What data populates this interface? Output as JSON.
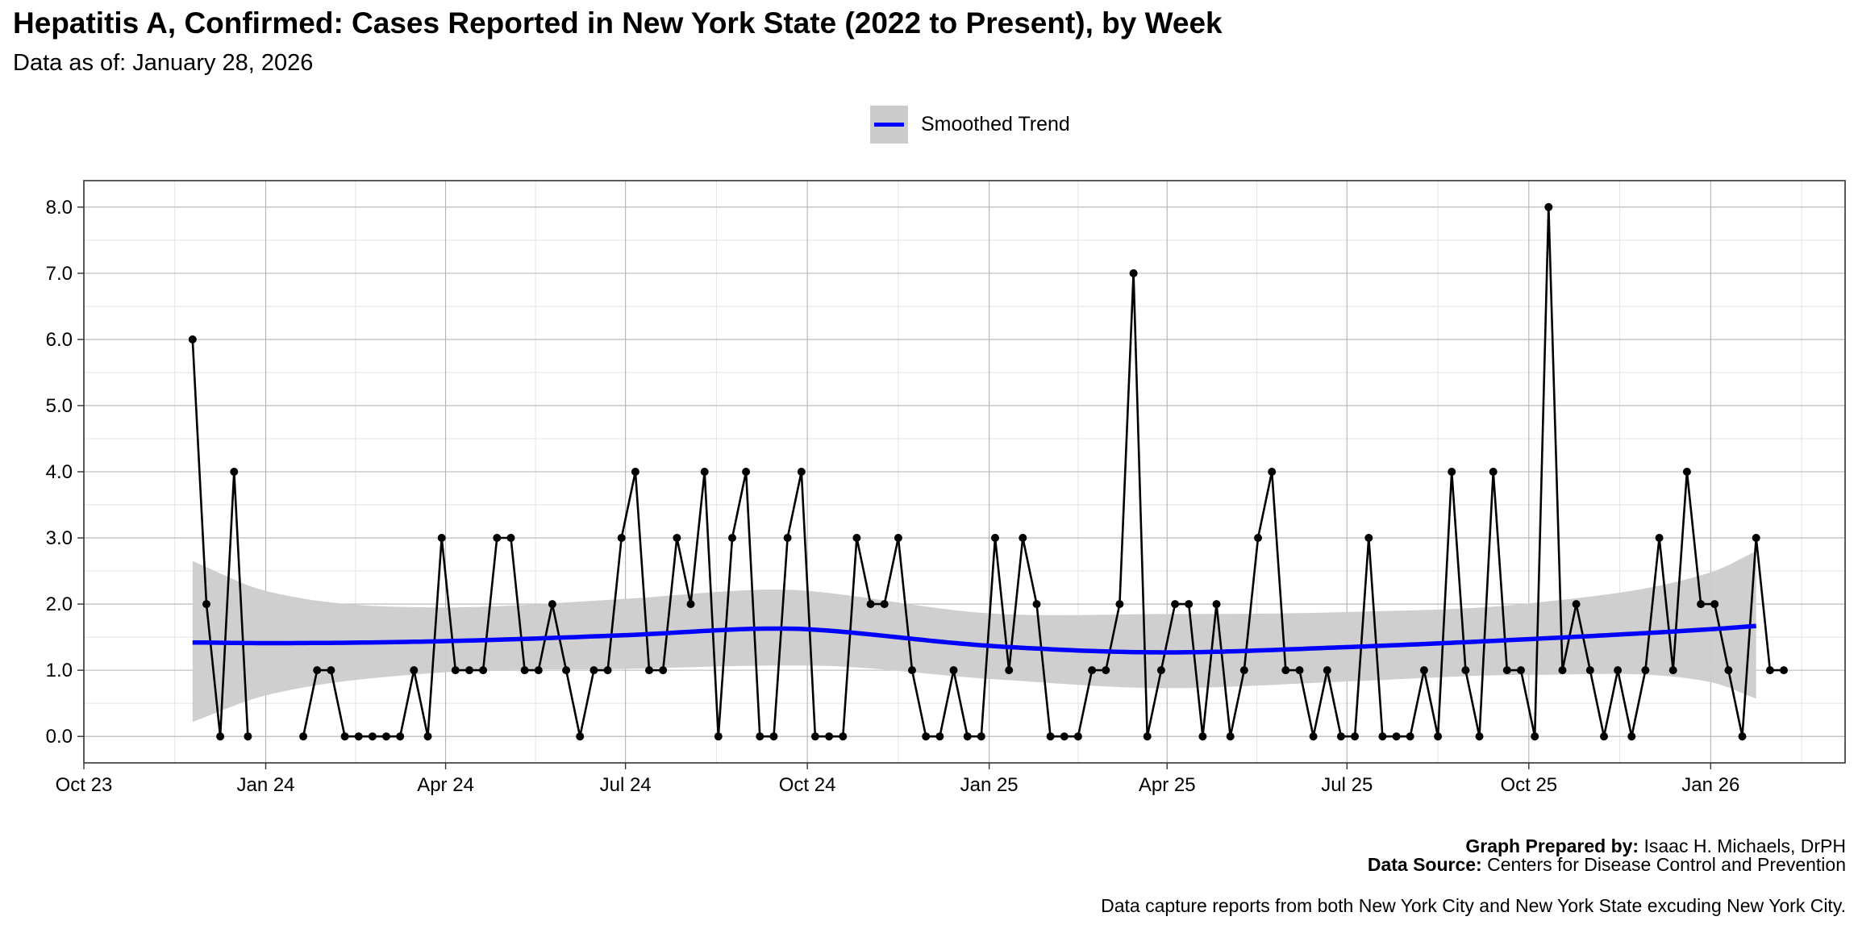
{
  "header": {
    "title": "Hepatitis A, Confirmed: Cases Reported in New York State (2022 to Present), by Week",
    "subtitle": "Data as of: January 28, 2026"
  },
  "legend": {
    "label": "Smoothed Trend"
  },
  "colors": {
    "trend": "#0000ff",
    "band": "#cccccc",
    "series": "#000000"
  },
  "footer": {
    "prepared_label": "Graph Prepared by:",
    "prepared_value": "Isaac H. Michaels, DrPH",
    "source_label": "Data Source:",
    "source_value": "Centers for Disease Control and Prevention",
    "note": "Data capture reports from both New York City and New York State excuding New York City."
  },
  "chart_data": {
    "type": "line",
    "title": "Hepatitis A, Confirmed: Cases Reported in New York State (2022 to Present), by Week",
    "xlabel": "",
    "ylabel": "",
    "x_start": "2023-11-25",
    "x_step_days": 7,
    "xlim": [
      "2023-10-01",
      "2026-03-10"
    ],
    "ylim": [
      -0.4,
      8.4
    ],
    "yticks": [
      0,
      1,
      2,
      3,
      4,
      5,
      6,
      7,
      8
    ],
    "ytick_labels": [
      "0.0",
      "1.0",
      "2.0",
      "3.0",
      "4.0",
      "5.0",
      "6.0",
      "7.0",
      "8.0"
    ],
    "xticks": [
      {
        "label": "Oct 23",
        "date": "2023-10-01"
      },
      {
        "label": "Jan 24",
        "date": "2024-01-01"
      },
      {
        "label": "Apr 24",
        "date": "2024-04-01"
      },
      {
        "label": "Jul 24",
        "date": "2024-07-01"
      },
      {
        "label": "Oct 24",
        "date": "2024-10-01"
      },
      {
        "label": "Jan 25",
        "date": "2025-01-01"
      },
      {
        "label": "Apr 25",
        "date": "2025-04-01"
      },
      {
        "label": "Jul 25",
        "date": "2025-07-01"
      },
      {
        "label": "Oct 25",
        "date": "2025-10-01"
      },
      {
        "label": "Jan 26",
        "date": "2026-01-01"
      }
    ],
    "series": [
      {
        "name": "Weekly cases",
        "segments": [
          [
            6,
            2,
            0,
            4,
            0
          ],
          [
            0,
            1,
            1,
            0,
            0,
            0,
            0,
            0,
            1,
            0,
            3,
            1,
            1,
            1,
            3,
            3,
            1,
            1,
            2,
            1,
            0,
            1,
            1,
            3,
            4,
            1,
            1,
            3,
            2,
            4,
            0,
            3,
            4,
            0,
            0,
            3,
            4,
            0,
            0,
            0,
            3,
            2,
            2,
            3,
            1,
            0,
            0,
            1,
            0,
            0,
            3,
            1,
            3,
            2,
            0,
            0,
            0,
            1,
            1,
            2,
            7,
            0,
            1,
            2,
            2,
            0,
            2,
            0,
            1,
            3,
            4,
            1,
            1,
            0,
            1,
            0,
            0,
            3,
            0,
            0,
            0,
            1,
            0,
            4,
            1,
            0,
            4,
            1,
            1,
            0,
            8,
            1,
            2,
            1,
            0,
            1,
            0,
            1,
            3,
            1,
            4,
            2,
            2,
            1,
            0,
            3,
            1,
            1
          ]
        ],
        "segment_start_offsets": [
          0,
          8
        ]
      },
      {
        "name": "Smoothed Trend",
        "knots": [
          {
            "date": "2023-11-25",
            "fit": 1.42,
            "lower": 0.22,
            "upper": 2.65
          },
          {
            "date": "2024-01-01",
            "fit": 1.41,
            "lower": 0.62,
            "upper": 2.2
          },
          {
            "date": "2024-04-01",
            "fit": 1.44,
            "lower": 0.97,
            "upper": 1.95
          },
          {
            "date": "2024-07-01",
            "fit": 1.53,
            "lower": 1.02,
            "upper": 2.08
          },
          {
            "date": "2024-09-15",
            "fit": 1.63,
            "lower": 1.07,
            "upper": 2.22
          },
          {
            "date": "2024-10-01",
            "fit": 1.62,
            "lower": 1.07,
            "upper": 2.2
          },
          {
            "date": "2025-01-01",
            "fit": 1.37,
            "lower": 0.87,
            "upper": 1.86
          },
          {
            "date": "2025-04-01",
            "fit": 1.27,
            "lower": 0.73,
            "upper": 1.85
          },
          {
            "date": "2025-07-01",
            "fit": 1.35,
            "lower": 0.83,
            "upper": 1.88
          },
          {
            "date": "2025-10-01",
            "fit": 1.47,
            "lower": 0.93,
            "upper": 2.01
          },
          {
            "date": "2026-01-01",
            "fit": 1.62,
            "lower": 0.82,
            "upper": 2.48
          },
          {
            "date": "2026-01-24",
            "fit": 1.67,
            "lower": 0.57,
            "upper": 2.8
          }
        ]
      }
    ]
  }
}
